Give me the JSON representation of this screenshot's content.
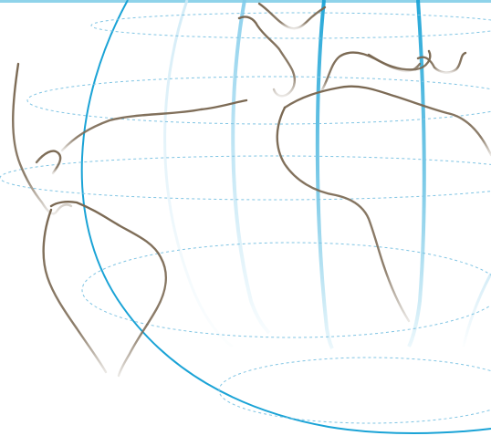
{
  "illustration": {
    "subject": "globe-outline",
    "colors": {
      "frame_rule": "#8fd3ea",
      "meridian": "#1aa3d6",
      "meridian_light": "#cfeaf6",
      "parallel_dashed": "#7fc4e3",
      "continent_outline": "#7a6852",
      "background": "#ffffff"
    }
  }
}
